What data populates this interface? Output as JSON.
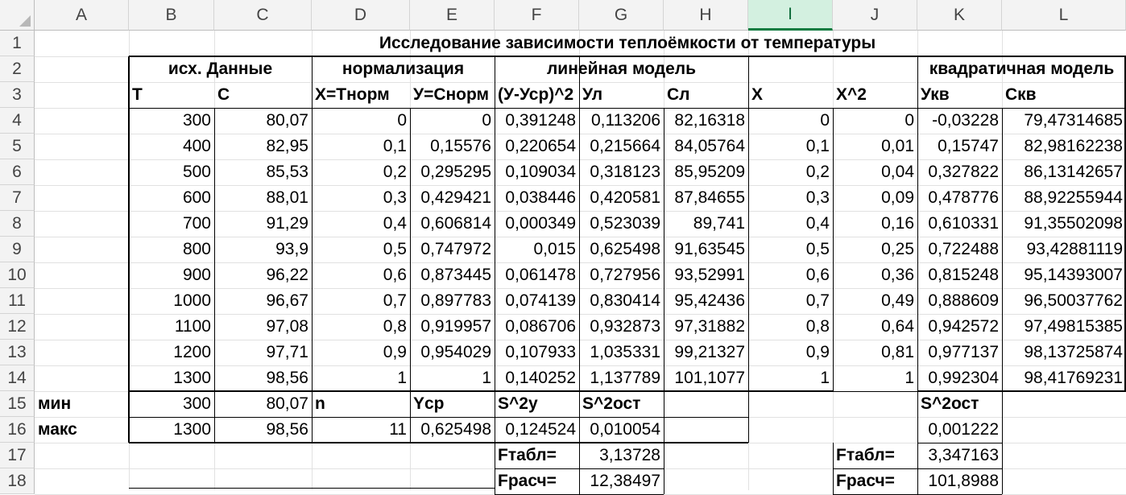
{
  "columns": [
    "A",
    "B",
    "C",
    "D",
    "E",
    "F",
    "G",
    "H",
    "I",
    "J",
    "K",
    "L"
  ],
  "rows": [
    "1",
    "2",
    "3",
    "4",
    "5",
    "6",
    "7",
    "8",
    "9",
    "10",
    "11",
    "12",
    "13",
    "14",
    "15",
    "16",
    "17",
    "18"
  ],
  "title": "Исследование зависимости теплоёмкости от температуры",
  "group_headers": {
    "source": "исх. Данные",
    "normalization": "нормализация",
    "linear": "линейная модель",
    "quadratic": "квадратичная модель"
  },
  "headers": {
    "B": "T",
    "C": "C",
    "D": "X=Tнорм",
    "E": "У=Cнорм",
    "F": "(У-Уср)^2",
    "G": "Ул",
    "H": "Сл",
    "I": "X",
    "J": "X^2",
    "K": "Укв",
    "L": "Скв"
  },
  "data_rows": [
    [
      "300",
      "80,07",
      "0",
      "0",
      "0,391248",
      "0,113206",
      "82,16318",
      "0",
      "0",
      "-0,03228",
      "79,47314685"
    ],
    [
      "400",
      "82,95",
      "0,1",
      "0,15576",
      "0,220654",
      "0,215664",
      "84,05764",
      "0,1",
      "0,01",
      "0,15747",
      "82,98162238"
    ],
    [
      "500",
      "85,53",
      "0,2",
      "0,295295",
      "0,109034",
      "0,318123",
      "85,95209",
      "0,2",
      "0,04",
      "0,327822",
      "86,13142657"
    ],
    [
      "600",
      "88,01",
      "0,3",
      "0,429421",
      "0,038446",
      "0,420581",
      "87,84655",
      "0,3",
      "0,09",
      "0,478776",
      "88,92255944"
    ],
    [
      "700",
      "91,29",
      "0,4",
      "0,606814",
      "0,000349",
      "0,523039",
      "89,741",
      "0,4",
      "0,16",
      "0,610331",
      "91,35502098"
    ],
    [
      "800",
      "93,9",
      "0,5",
      "0,747972",
      "0,015",
      "0,625498",
      "91,63545",
      "0,5",
      "0,25",
      "0,722488",
      "93,42881119"
    ],
    [
      "900",
      "96,22",
      "0,6",
      "0,873445",
      "0,061478",
      "0,727956",
      "93,52991",
      "0,6",
      "0,36",
      "0,815248",
      "95,14393007"
    ],
    [
      "1000",
      "96,67",
      "0,7",
      "0,897783",
      "0,074139",
      "0,830414",
      "95,42436",
      "0,7",
      "0,49",
      "0,888609",
      "96,50037762"
    ],
    [
      "1100",
      "97,08",
      "0,8",
      "0,919957",
      "0,086706",
      "0,932873",
      "97,31882",
      "0,8",
      "0,64",
      "0,942572",
      "97,49815385"
    ],
    [
      "1200",
      "97,71",
      "0,9",
      "0,954029",
      "0,107933",
      "1,035331",
      "99,21327",
      "0,9",
      "0,81",
      "0,977137",
      "98,13725874"
    ],
    [
      "1300",
      "98,56",
      "1",
      "1",
      "0,140252",
      "1,137789",
      "101,1077",
      "1",
      "1",
      "0,992304",
      "98,41769231"
    ]
  ],
  "stats": {
    "min_label": "мин",
    "max_label": "макс",
    "min_T": "300",
    "min_C": "80,07",
    "max_T": "1300",
    "max_C": "98,56",
    "n_label": "n",
    "n_value": "11",
    "ycp_label": "Yср",
    "ycp_value": "0,625498",
    "s2y_label": "S^2y",
    "s2y_value": "0,124524",
    "s2ost_lin_label": "S^2ост",
    "s2ost_lin_value": "0,010054",
    "s2ost_quad_label": "S^2ост",
    "s2ost_quad_value": "0,001222",
    "ftabl_lin_label": "Fтабл=",
    "ftabl_lin_value": "3,13728",
    "frasch_lin_label": "Fрасч=",
    "frasch_lin_value": "12,38497",
    "ftabl_quad_label": "Fтабл=",
    "ftabl_quad_value": "3,347163",
    "frasch_quad_label": "Fрасч=",
    "frasch_quad_value": "101,8988"
  },
  "selected_column": "I"
}
